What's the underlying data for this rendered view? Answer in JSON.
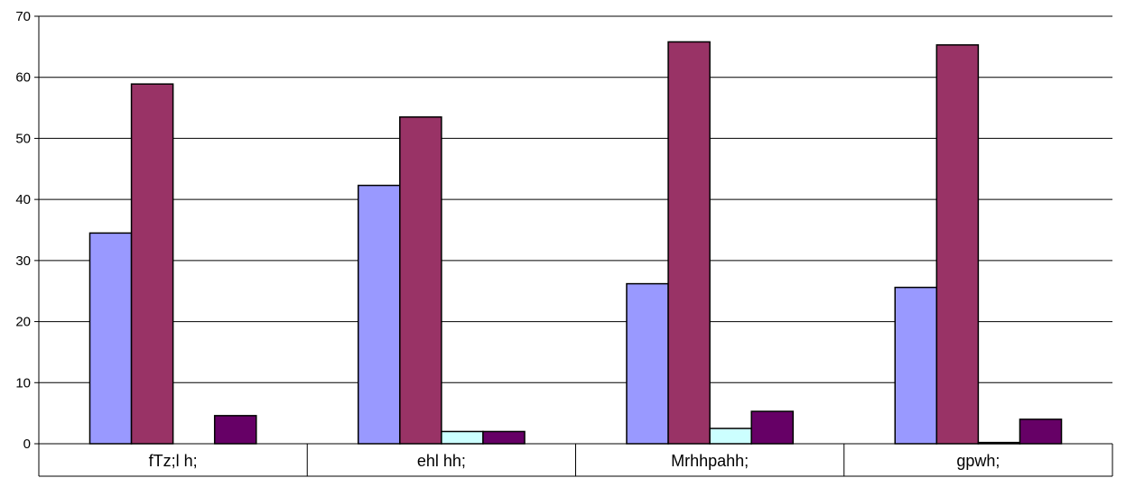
{
  "chart_data": {
    "type": "bar",
    "categories": [
      "fTz;l h;",
      "ehl hh;",
      "Mrhhpahh;",
      "gpwh;"
    ],
    "series": [
      {
        "values": [
          34.5,
          42.3,
          26.2,
          25.6
        ],
        "color": "#9999ff"
      },
      {
        "values": [
          58.9,
          53.5,
          65.8,
          65.3
        ],
        "color": "#993366"
      },
      {
        "values": [
          0,
          2.0,
          2.5,
          0.2
        ],
        "color": "#ccffff"
      },
      {
        "values": [
          4.6,
          2.0,
          5.3,
          4.0
        ],
        "color": "#660066"
      }
    ],
    "ylim": [
      0,
      70
    ],
    "yticks": [
      0,
      10,
      20,
      30,
      40,
      50,
      60,
      70
    ],
    "grid": true,
    "legend": "none"
  }
}
